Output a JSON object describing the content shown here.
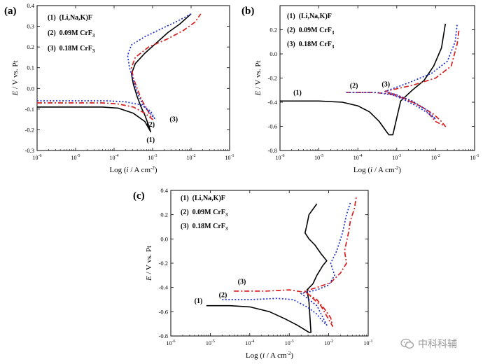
{
  "chart_data": [
    {
      "type": "line",
      "panel_label": "(a)",
      "xlabel": "Log (i / A cm-2)",
      "ylabel": "E / V vs. Pt",
      "xlim": [
        -6,
        -1
      ],
      "ylim": [
        -0.3,
        0.4
      ],
      "xticks": [
        -6,
        -5,
        -4,
        -3,
        -2,
        -1
      ],
      "yticks": [
        -0.3,
        -0.2,
        -0.1,
        0.0,
        0.1,
        0.2,
        0.3,
        0.4
      ],
      "ytick_labels": [
        "-0.3",
        "-0.2",
        "-0.1",
        "0.0",
        "0.1",
        "0.2",
        "0.3",
        "0.4"
      ],
      "legend_position": "top-left",
      "annotations": [
        {
          "text": "(1)",
          "x": -3.05,
          "y": -0.26
        },
        {
          "text": "(2)",
          "x": -3.05,
          "y": -0.185
        },
        {
          "text": "(3)",
          "x": -2.45,
          "y": -0.16
        }
      ],
      "series": [
        {
          "name": "(1) (Li,Na,K)F",
          "label": "1",
          "color": "#000000",
          "dash": "solid",
          "x": [
            -6.0,
            -5.0,
            -4.3,
            -3.9,
            -3.5,
            -3.2,
            -3.05,
            -3.1,
            -3.2,
            -3.3,
            -3.4,
            -3.5,
            -3.55,
            -3.45,
            -3.2,
            -2.9,
            -2.6,
            -2.3,
            -2.0
          ],
          "y": [
            -0.09,
            -0.09,
            -0.09,
            -0.095,
            -0.12,
            -0.16,
            -0.21,
            -0.18,
            -0.13,
            -0.09,
            -0.04,
            0.02,
            0.07,
            0.12,
            0.17,
            0.22,
            0.27,
            0.31,
            0.36
          ]
        },
        {
          "name": "(2) 0.09M CrF3",
          "label": "2",
          "color": "#d81e1e",
          "dash": "dashdot",
          "x": [
            -6.0,
            -5.0,
            -4.3,
            -3.9,
            -3.5,
            -3.2,
            -3.0,
            -3.15,
            -3.3,
            -3.4,
            -3.5,
            -3.55,
            -3.45,
            -3.1,
            -2.6,
            -2.2,
            -1.9,
            -1.75
          ],
          "y": [
            -0.07,
            -0.07,
            -0.07,
            -0.075,
            -0.09,
            -0.12,
            -0.15,
            -0.1,
            -0.05,
            0.0,
            0.05,
            0.1,
            0.15,
            0.2,
            0.24,
            0.28,
            0.32,
            0.36
          ]
        },
        {
          "name": "(3) 0.18M CrF3",
          "label": "3",
          "color": "#1f2fd0",
          "dash": "dotted",
          "x": [
            -6.0,
            -5.0,
            -4.2,
            -3.7,
            -3.3,
            -3.05,
            -2.95,
            -3.25,
            -3.4,
            -3.5,
            -3.6,
            -3.65,
            -3.55,
            -3.2,
            -2.75,
            -2.3,
            -2.0
          ],
          "y": [
            -0.06,
            -0.06,
            -0.06,
            -0.065,
            -0.08,
            -0.11,
            -0.145,
            -0.08,
            -0.02,
            0.04,
            0.1,
            0.16,
            0.21,
            0.25,
            0.29,
            0.33,
            0.36
          ]
        }
      ]
    },
    {
      "type": "line",
      "panel_label": "(b)",
      "xlabel": "Log (i / A cm-2)",
      "ylabel": "E / V vs. Pt",
      "xlim": [
        -6,
        -1
      ],
      "ylim": [
        -0.8,
        0.4
      ],
      "xticks": [
        -6,
        -5,
        -4,
        -3,
        -2,
        -1
      ],
      "yticks": [
        -0.8,
        -0.6,
        -0.4,
        -0.2,
        0.0,
        0.2
      ],
      "ytick_labels": [
        "-0.8",
        "-0.6",
        "-0.4",
        "-0.2",
        "0.0",
        "0.2"
      ],
      "legend_position": "top-left",
      "annotations": [
        {
          "text": "(1)",
          "x": -5.55,
          "y": -0.34
        },
        {
          "text": "(2)",
          "x": -4.1,
          "y": -0.28
        },
        {
          "text": "(3)",
          "x": -3.28,
          "y": -0.27
        }
      ],
      "series": [
        {
          "name": "(1) (Li,Na,K)F",
          "label": "1",
          "color": "#000000",
          "dash": "solid",
          "x": [
            -6.0,
            -5.0,
            -4.4,
            -4.0,
            -3.7,
            -3.45,
            -3.25,
            -3.2,
            -3.1,
            -2.9,
            -2.6,
            -2.3,
            -2.05,
            -1.85,
            -1.75
          ],
          "y": [
            -0.39,
            -0.39,
            -0.4,
            -0.43,
            -0.48,
            -0.56,
            -0.65,
            -0.67,
            -0.67,
            -0.39,
            -0.3,
            -0.22,
            -0.1,
            0.05,
            0.25
          ]
        },
        {
          "name": "(2) 0.09M CrF3",
          "label": "2",
          "color": "#d81e1e",
          "dash": "dashdot",
          "x": [
            -4.3,
            -3.6,
            -3.2,
            -2.9,
            -2.6,
            -2.3,
            -2.05,
            -1.85,
            -1.75,
            -2.0,
            -2.3,
            -2.7,
            -3.0,
            -3.3,
            -2.6,
            -2.0,
            -1.6,
            -1.45,
            -1.4
          ],
          "y": [
            -0.32,
            -0.32,
            -0.33,
            -0.36,
            -0.4,
            -0.45,
            -0.5,
            -0.56,
            -0.6,
            -0.56,
            -0.45,
            -0.38,
            -0.34,
            -0.31,
            -0.26,
            -0.2,
            -0.1,
            0.08,
            0.2
          ]
        },
        {
          "name": "(3) 0.18M CrF3",
          "label": "3",
          "color": "#1f2fd0",
          "dash": "dotted",
          "x": [
            -4.3,
            -3.5,
            -3.1,
            -2.8,
            -2.5,
            -2.2,
            -2.0,
            -2.2,
            -2.6,
            -3.0,
            -3.3,
            -2.7,
            -2.1,
            -1.7,
            -1.5,
            -1.45
          ],
          "y": [
            -0.32,
            -0.32,
            -0.34,
            -0.38,
            -0.43,
            -0.49,
            -0.54,
            -0.47,
            -0.39,
            -0.34,
            -0.31,
            -0.24,
            -0.16,
            -0.06,
            0.1,
            0.24
          ]
        }
      ]
    },
    {
      "type": "line",
      "panel_label": "(c)",
      "xlabel": "Log (i / A cm-2)",
      "ylabel": "E / V vs. Pt",
      "xlim": [
        -6,
        -1
      ],
      "ylim": [
        -0.8,
        0.4
      ],
      "xticks": [
        -6,
        -5,
        -4,
        -3,
        -2,
        -1
      ],
      "yticks": [
        -0.8,
        -0.6,
        -0.4,
        -0.2,
        0.0,
        0.2,
        0.4
      ],
      "ytick_labels": [
        "-0.8",
        "-0.6",
        "-0.4",
        "-0.2",
        "0.0",
        "0.2",
        "0.4"
      ],
      "legend_position": "top-left",
      "annotations": [
        {
          "text": "(1)",
          "x": -5.3,
          "y": -0.53
        },
        {
          "text": "(2)",
          "x": -4.68,
          "y": -0.48
        },
        {
          "text": "(3)",
          "x": -4.2,
          "y": -0.37
        }
      ],
      "series": [
        {
          "name": "(1) (Li,Na,K)F",
          "label": "1",
          "color": "#000000",
          "dash": "solid",
          "x": [
            -5.1,
            -4.5,
            -4.0,
            -3.5,
            -3.1,
            -2.8,
            -2.6,
            -2.5,
            -2.45,
            -2.5,
            -2.55,
            -2.4,
            -2.3,
            -2.15,
            -2.05,
            -2.2,
            -2.35,
            -2.5,
            -2.6,
            -2.55,
            -2.5,
            -2.3
          ],
          "y": [
            -0.55,
            -0.55,
            -0.56,
            -0.6,
            -0.66,
            -0.71,
            -0.75,
            -0.77,
            -0.77,
            -0.52,
            -0.42,
            -0.37,
            -0.3,
            -0.22,
            -0.18,
            -0.12,
            -0.05,
            0.0,
            0.05,
            0.12,
            0.2,
            0.29
          ]
        },
        {
          "name": "(2) 0.09M CrF3",
          "label": "2",
          "color": "#d81e1e",
          "dash": "dashdot",
          "x": [
            -4.4,
            -3.6,
            -3.0,
            -2.6,
            -2.3,
            -2.1,
            -1.95,
            -1.9,
            -2.2,
            -2.6,
            -2.3,
            -1.95,
            -1.7,
            -1.55,
            -1.6,
            -1.5,
            -1.45,
            -1.35,
            -1.3
          ],
          "y": [
            -0.43,
            -0.43,
            -0.42,
            -0.44,
            -0.5,
            -0.58,
            -0.65,
            -0.72,
            -0.55,
            -0.43,
            -0.4,
            -0.36,
            -0.28,
            -0.2,
            -0.1,
            0.05,
            0.15,
            0.25,
            0.35
          ]
        },
        {
          "name": "(3) 0.18M CrF3",
          "label": "3",
          "color": "#1f2fd0",
          "dash": "dotted",
          "x": [
            -4.7,
            -4.0,
            -3.3,
            -2.9,
            -2.55,
            -2.3,
            -2.15,
            -2.05,
            -2.3,
            -2.7,
            -2.3,
            -2.0,
            -1.85,
            -1.95,
            -1.8,
            -1.65,
            -1.55,
            -1.45
          ],
          "y": [
            -0.5,
            -0.5,
            -0.49,
            -0.5,
            -0.56,
            -0.62,
            -0.68,
            -0.71,
            -0.55,
            -0.45,
            -0.42,
            -0.38,
            -0.3,
            -0.2,
            -0.1,
            0.05,
            0.2,
            0.3
          ]
        }
      ]
    }
  ],
  "watermark": {
    "text": "中科科辅",
    "logo": "wechat-logo-icon"
  }
}
